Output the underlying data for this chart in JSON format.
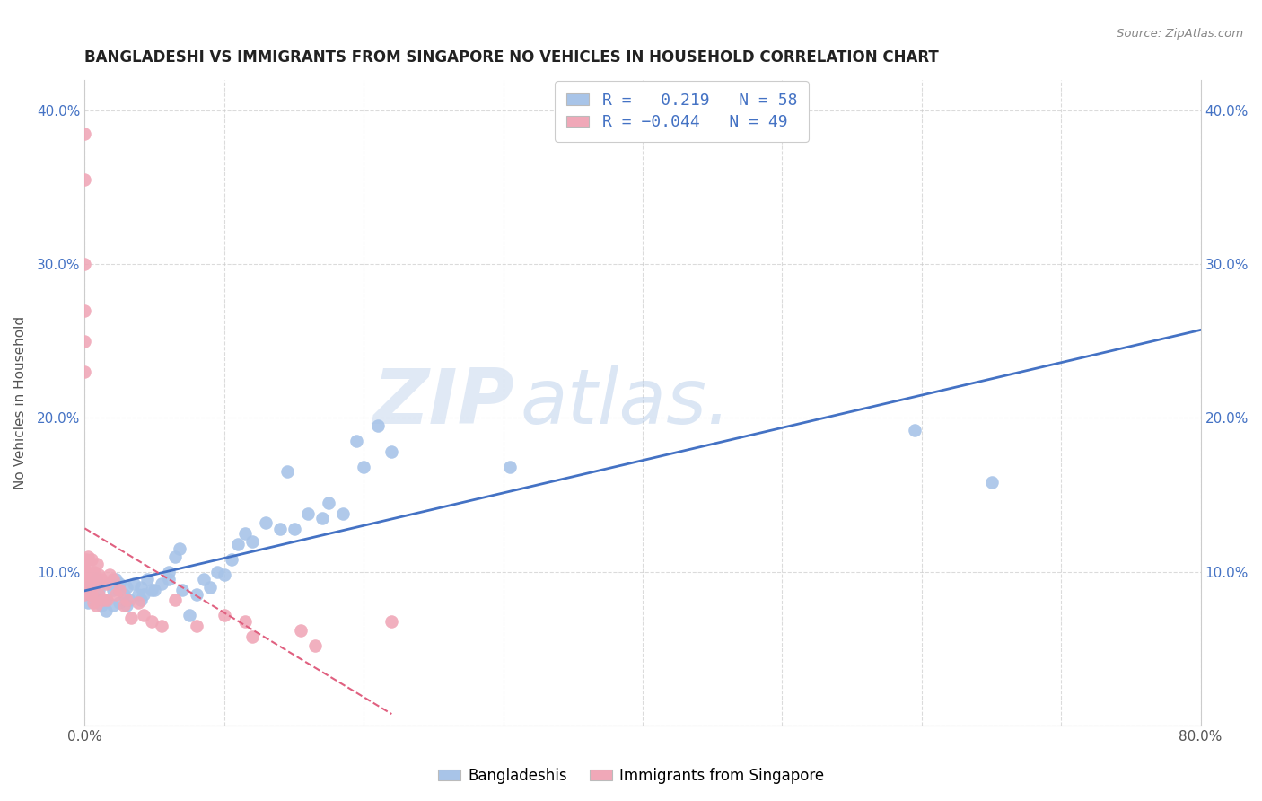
{
  "title": "BANGLADESHI VS IMMIGRANTS FROM SINGAPORE NO VEHICLES IN HOUSEHOLD CORRELATION CHART",
  "source": "Source: ZipAtlas.com",
  "ylabel": "No Vehicles in Household",
  "xlim": [
    0.0,
    0.8
  ],
  "ylim": [
    0.0,
    0.42
  ],
  "r_bangladeshi": 0.219,
  "n_bangladeshi": 58,
  "r_singapore": -0.044,
  "n_singapore": 49,
  "legend_labels": [
    "Bangladeshis",
    "Immigrants from Singapore"
  ],
  "watermark_part1": "ZIP",
  "watermark_part2": "atlas.",
  "blue_color": "#a8c4e8",
  "pink_color": "#f0a8b8",
  "line_blue": "#4472c4",
  "line_pink": "#e06080",
  "bangladeshi_x": [
    0.001,
    0.002,
    0.005,
    0.008,
    0.01,
    0.01,
    0.012,
    0.015,
    0.015,
    0.018,
    0.02,
    0.02,
    0.022,
    0.025,
    0.025,
    0.028,
    0.03,
    0.03,
    0.032,
    0.035,
    0.038,
    0.04,
    0.04,
    0.042,
    0.045,
    0.048,
    0.05,
    0.055,
    0.06,
    0.06,
    0.065,
    0.068,
    0.07,
    0.075,
    0.08,
    0.085,
    0.09,
    0.095,
    0.1,
    0.105,
    0.11,
    0.115,
    0.12,
    0.13,
    0.14,
    0.145,
    0.15,
    0.16,
    0.17,
    0.175,
    0.185,
    0.195,
    0.2,
    0.21,
    0.22,
    0.305,
    0.595,
    0.65
  ],
  "bangladeshi_y": [
    0.09,
    0.08,
    0.085,
    0.095,
    0.082,
    0.088,
    0.078,
    0.075,
    0.082,
    0.092,
    0.078,
    0.088,
    0.095,
    0.08,
    0.092,
    0.085,
    0.078,
    0.09,
    0.082,
    0.092,
    0.085,
    0.082,
    0.09,
    0.085,
    0.095,
    0.088,
    0.088,
    0.092,
    0.095,
    0.1,
    0.11,
    0.115,
    0.088,
    0.072,
    0.085,
    0.095,
    0.09,
    0.1,
    0.098,
    0.108,
    0.118,
    0.125,
    0.12,
    0.132,
    0.128,
    0.165,
    0.128,
    0.138,
    0.135,
    0.145,
    0.138,
    0.185,
    0.168,
    0.195,
    0.178,
    0.168,
    0.192,
    0.158
  ],
  "singapore_x": [
    0.0,
    0.0,
    0.0,
    0.0,
    0.0,
    0.0,
    0.0,
    0.0,
    0.001,
    0.001,
    0.001,
    0.002,
    0.003,
    0.003,
    0.004,
    0.004,
    0.005,
    0.005,
    0.005,
    0.006,
    0.007,
    0.008,
    0.008,
    0.009,
    0.01,
    0.01,
    0.012,
    0.013,
    0.015,
    0.016,
    0.018,
    0.02,
    0.022,
    0.025,
    0.028,
    0.03,
    0.033,
    0.038,
    0.042,
    0.048,
    0.055,
    0.065,
    0.08,
    0.1,
    0.115,
    0.12,
    0.155,
    0.165,
    0.22
  ],
  "singapore_y": [
    0.385,
    0.355,
    0.3,
    0.27,
    0.25,
    0.23,
    0.105,
    0.085,
    0.108,
    0.1,
    0.092,
    0.11,
    0.1,
    0.092,
    0.095,
    0.085,
    0.108,
    0.095,
    0.085,
    0.08,
    0.1,
    0.092,
    0.078,
    0.105,
    0.098,
    0.085,
    0.095,
    0.082,
    0.092,
    0.082,
    0.098,
    0.095,
    0.085,
    0.088,
    0.078,
    0.082,
    0.07,
    0.08,
    0.072,
    0.068,
    0.065,
    0.082,
    0.065,
    0.072,
    0.068,
    0.058,
    0.062,
    0.052,
    0.068
  ]
}
